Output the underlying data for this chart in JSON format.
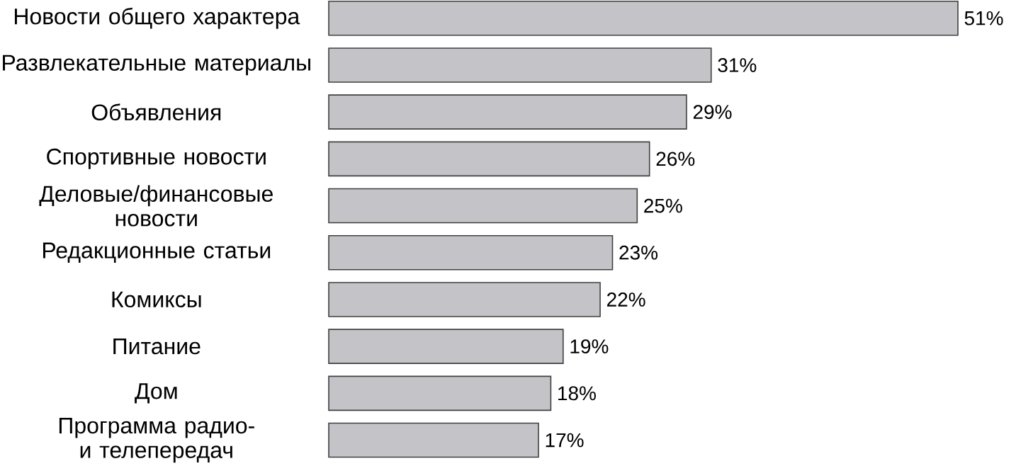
{
  "chart_data": {
    "type": "bar",
    "orientation": "horizontal",
    "categories": [
      "Новости общего характера",
      "Развлекательные материалы",
      "Объявления",
      "Спортивные новости",
      "Деловые/финансовые новости",
      "Редакционные статьи",
      "Комиксы",
      "Питание",
      "Дом",
      "Программа радио- и телепередач"
    ],
    "values": [
      51,
      31,
      29,
      26,
      25,
      23,
      22,
      19,
      18,
      17
    ],
    "value_labels": [
      "51%",
      "31%",
      "29%",
      "26%",
      "25%",
      "23%",
      "22%",
      "19%",
      "18%",
      "17%"
    ],
    "color": "#c4c4c8"
  }
}
